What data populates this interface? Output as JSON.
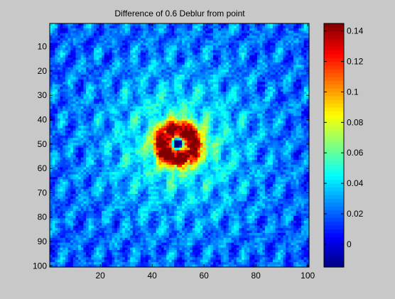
{
  "chart_data": {
    "type": "heatmap",
    "title": "Difference of 0.6 Deblur from point",
    "xlabel": "",
    "ylabel": "",
    "grid_size": [
      100,
      100
    ],
    "xlim": [
      1,
      100
    ],
    "ylim": [
      1,
      100
    ],
    "y_reversed": true,
    "x_ticks": [
      20,
      40,
      60,
      80,
      100
    ],
    "x_tick_labels": [
      "20",
      "40",
      "60",
      "80",
      "100"
    ],
    "y_ticks": [
      10,
      20,
      30,
      40,
      50,
      60,
      70,
      80,
      90,
      100
    ],
    "y_tick_labels": [
      "10",
      "20",
      "30",
      "40",
      "50",
      "60",
      "70",
      "80",
      "90",
      "100"
    ],
    "colormap": "jet",
    "clim": [
      -0.015,
      0.145
    ],
    "colorbar_ticks": [
      0,
      0.02,
      0.04,
      0.06,
      0.08,
      0.1,
      0.12,
      0.14
    ],
    "colorbar_tick_labels": [
      "0",
      "0.02",
      "0.04",
      "0.06",
      "0.08",
      "0.1",
      "0.12",
      "0.14"
    ],
    "field_description": {
      "background_level": 0.02,
      "peak_center": [
        50,
        50
      ],
      "peak_max": 0.13,
      "center_min": -0.01
    }
  }
}
